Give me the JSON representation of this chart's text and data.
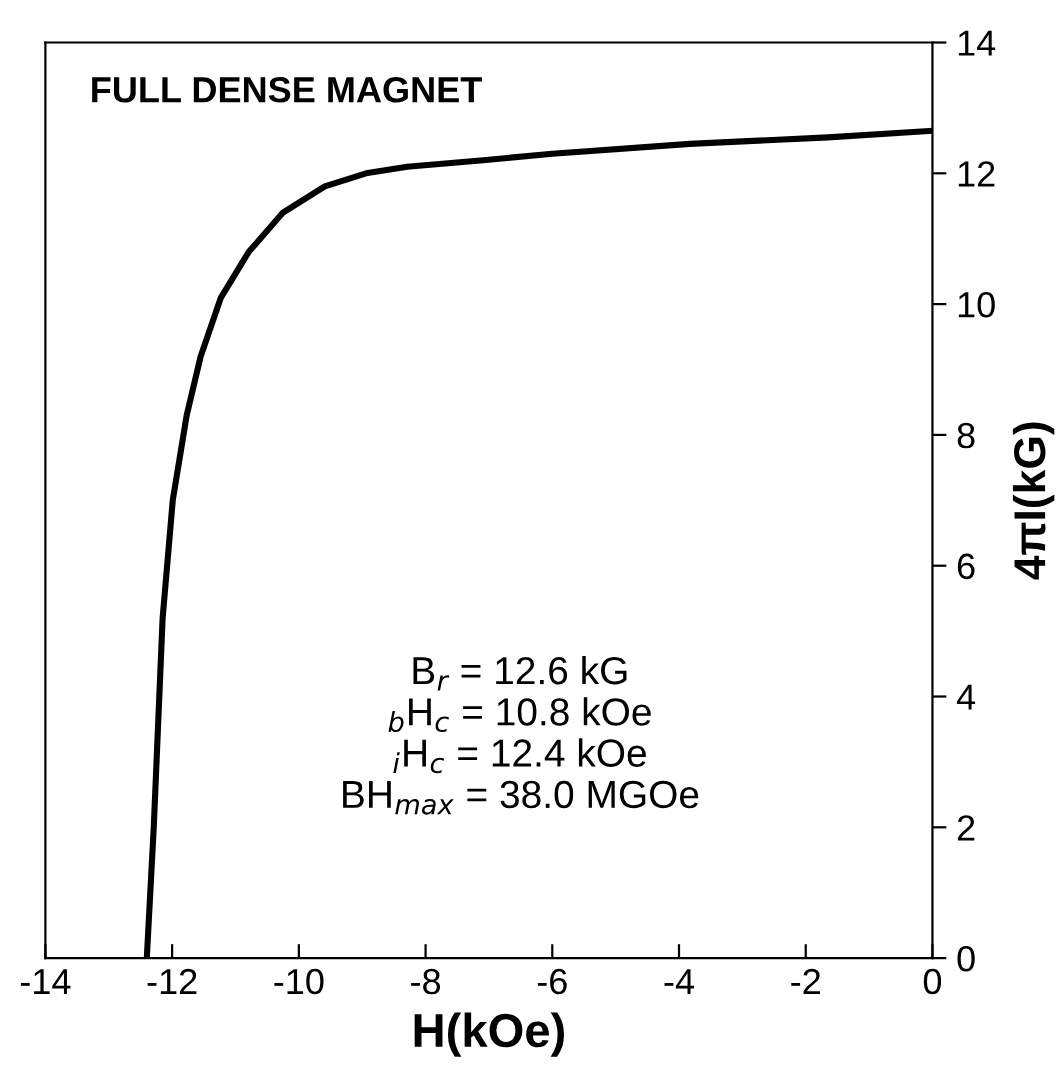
{
  "chart_data": {
    "type": "line",
    "title": "FULL DENSE MAGNET",
    "xlabel": "H(kOe)",
    "ylabel": "4πI(kG)",
    "x": [
      -12.4,
      -12.29,
      -12.15,
      -11.99,
      -11.77,
      -11.55,
      -11.23,
      -10.79,
      -10.25,
      -9.59,
      -8.94,
      -8.29,
      -7.09,
      -6.0,
      -3.83,
      -1.65,
      0
    ],
    "series": [
      {
        "color": "#000000",
        "values": [
          0,
          2.0,
          5.2,
          7.0,
          8.3,
          9.2,
          10.1,
          10.8,
          11.4,
          11.8,
          12.0,
          12.1,
          12.2,
          12.3,
          12.45,
          12.55,
          12.65
        ]
      }
    ],
    "xlim": [
      -14,
      0
    ],
    "xticks": [
      -14,
      -12,
      -10,
      -8,
      -6,
      -4,
      -2,
      0
    ],
    "ylim": [
      0,
      14
    ],
    "yticks": [
      0,
      2,
      4,
      6,
      8,
      10,
      12,
      14
    ],
    "annotations": [
      "B$_{r}$ = 12.6 kG",
      "$_{b}$H$_{c}$ = 10.8 kOe",
      "$_{i}$H$_{c}$ = 12.4 kOe",
      "BH$_{max}$ = 38.0 MGOe"
    ],
    "grid": false,
    "legend": false,
    "marker": "none",
    "line_style": "solid"
  }
}
